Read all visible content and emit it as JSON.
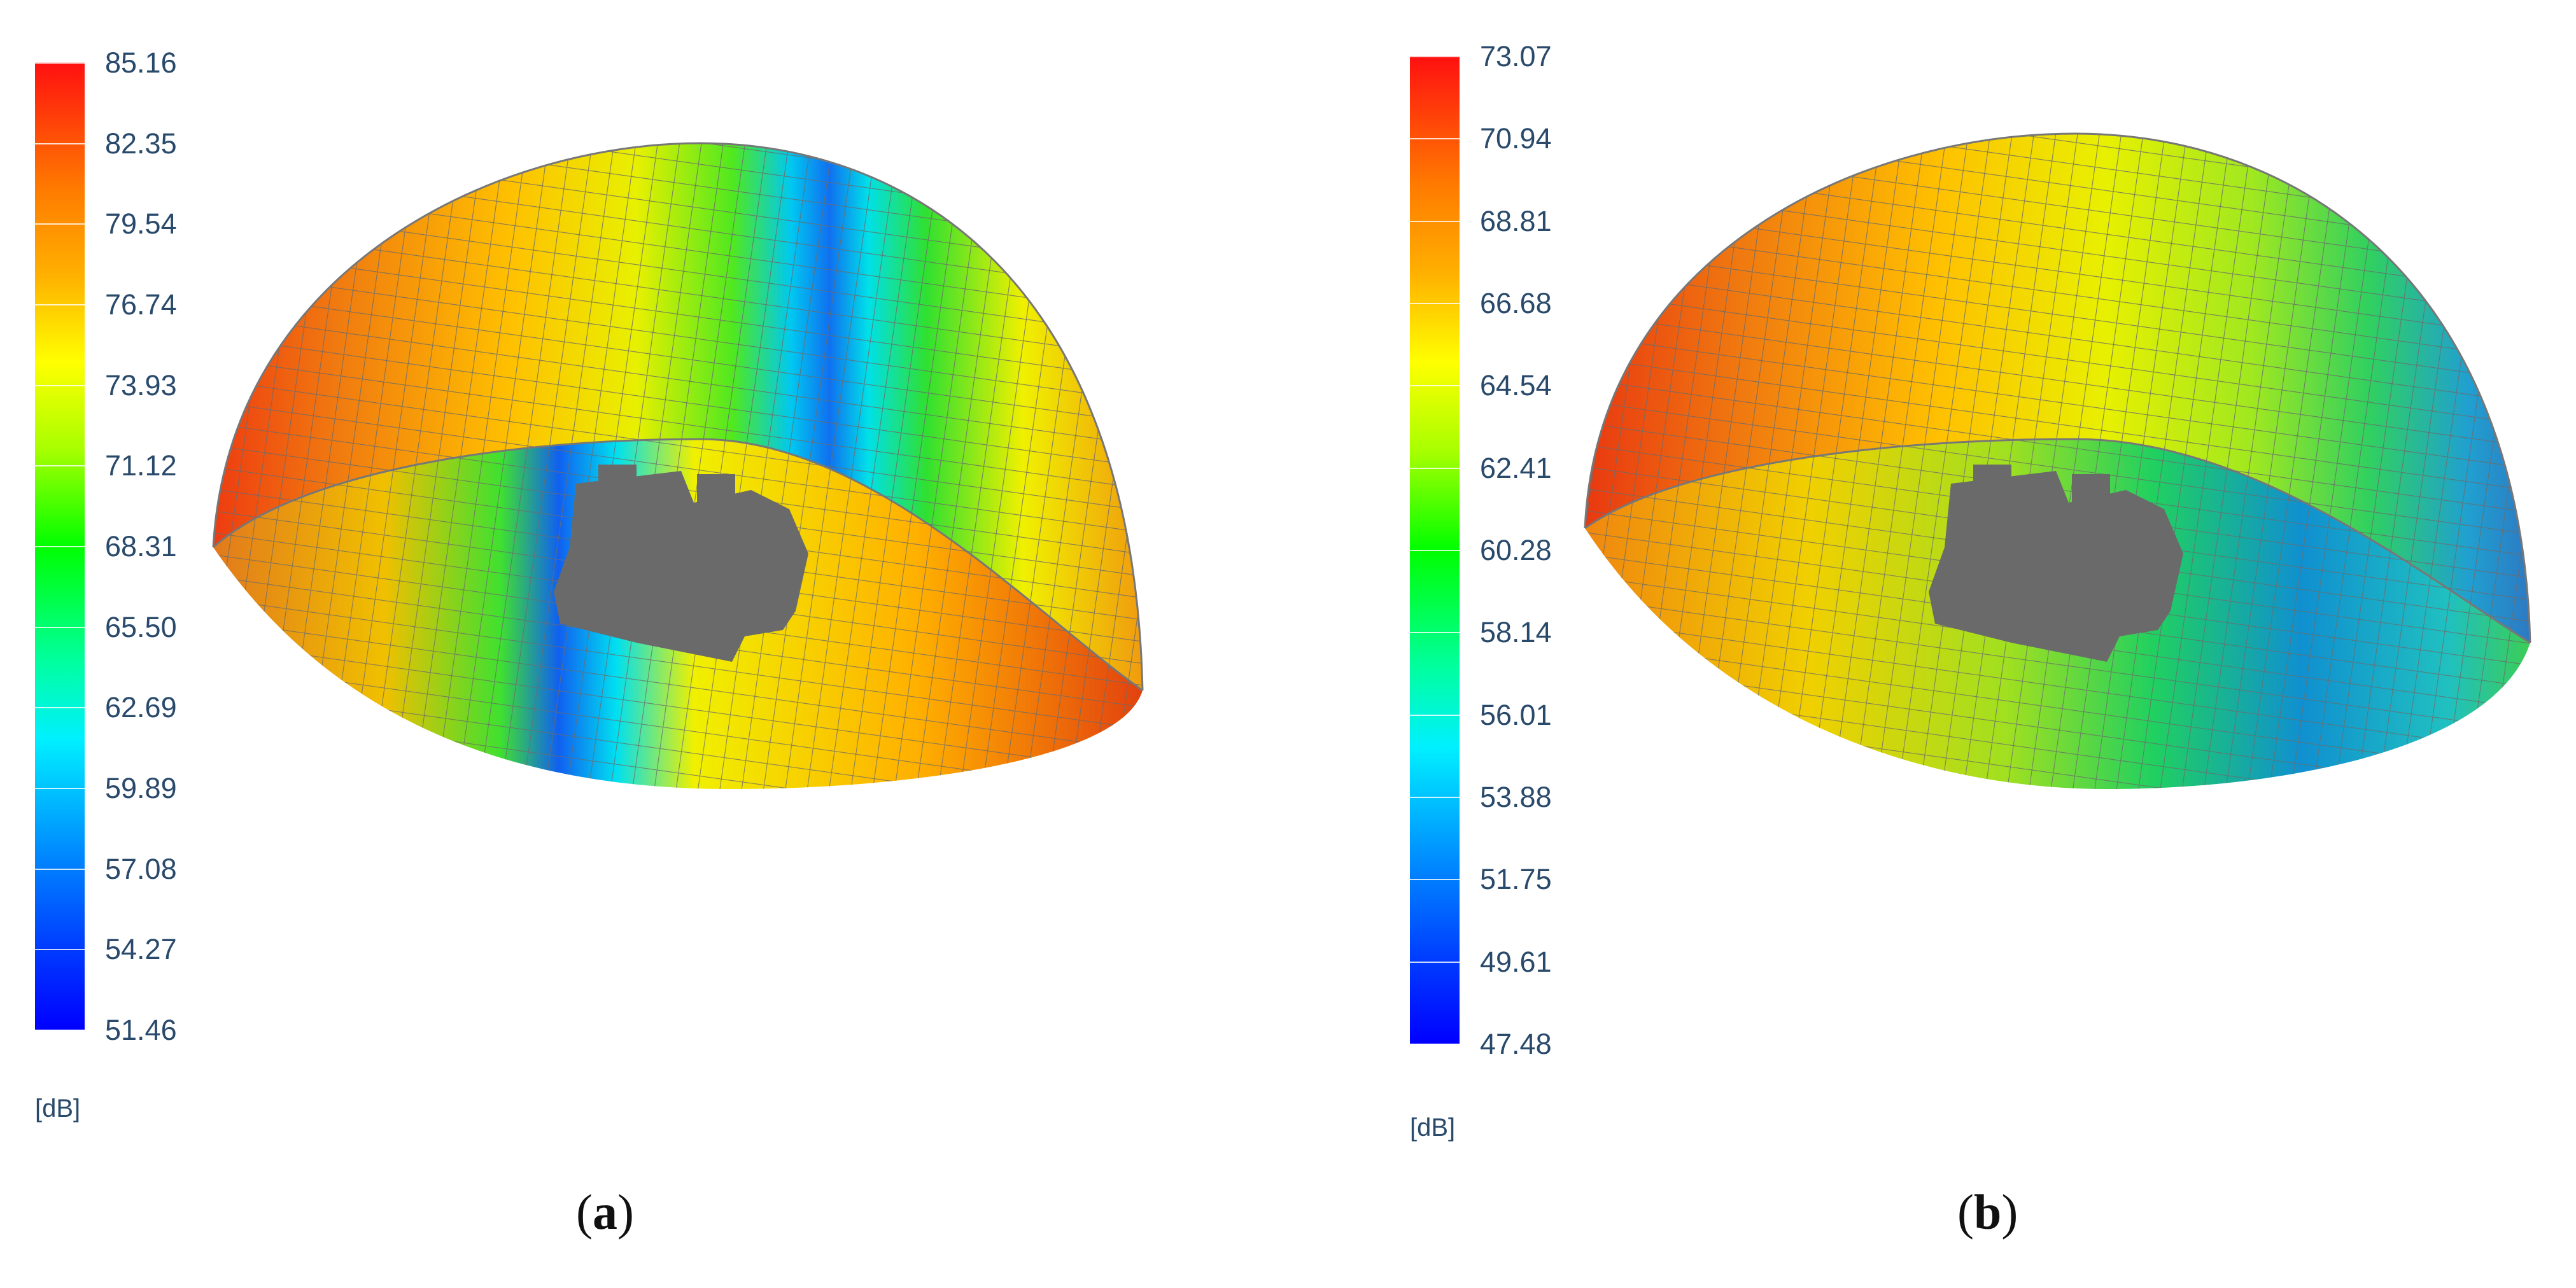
{
  "panels": [
    {
      "id": "a",
      "caption_letter": "a",
      "unit": "[dB]",
      "colorbar_ticks": [
        "85.16",
        "82.35",
        "79.54",
        "76.74",
        "73.93",
        "71.12",
        "68.31",
        "65.50",
        "62.69",
        "59.89",
        "57.08",
        "54.27",
        "51.46"
      ]
    },
    {
      "id": "b",
      "caption_letter": "b",
      "unit": "[dB]",
      "colorbar_ticks": [
        "73.07",
        "70.94",
        "68.81",
        "66.68",
        "64.54",
        "62.41",
        "60.28",
        "58.14",
        "56.01",
        "53.88",
        "51.75",
        "49.61",
        "47.48"
      ]
    }
  ],
  "colors": {
    "scale": [
      "#ff0000",
      "#ff7a00",
      "#ffd000",
      "#ffff00",
      "#aaff00",
      "#00ff00",
      "#00ffaa",
      "#00e0ff",
      "#0090ff",
      "#0040ff",
      "#0000ff"
    ],
    "mesh": "#6b6b6b",
    "object": "#6a6a6a",
    "label": "#2a4a6b"
  }
}
